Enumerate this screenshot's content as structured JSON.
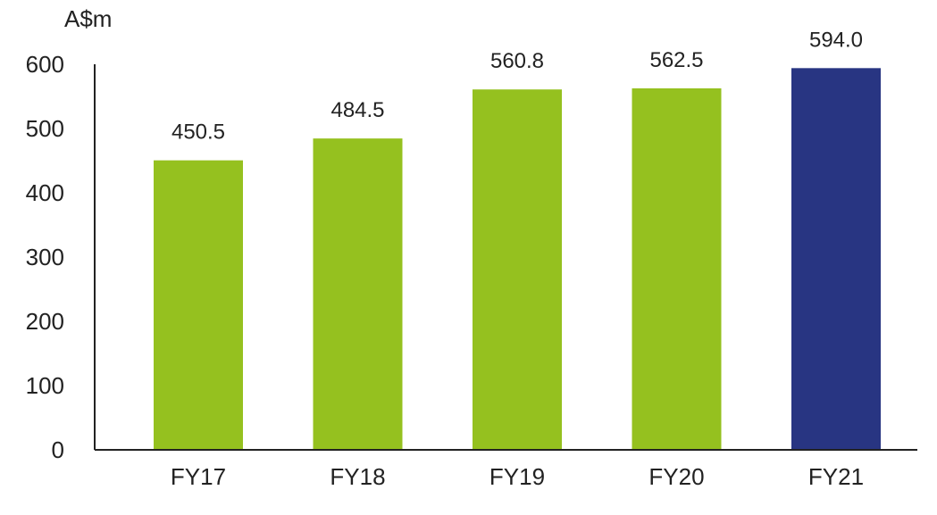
{
  "chart_data": {
    "type": "bar",
    "title": "",
    "xlabel": "",
    "ylabel": "A$m",
    "ylim": [
      0,
      600
    ],
    "yticks": [
      0,
      100,
      200,
      300,
      400,
      500,
      600
    ],
    "grid": false,
    "categories": [
      "FY17",
      "FY18",
      "FY19",
      "FY20",
      "FY21"
    ],
    "values": [
      450.5,
      484.5,
      560.8,
      562.5,
      594.0
    ],
    "data_labels": [
      "450.5",
      "484.5",
      "560.8",
      "562.5",
      "594.0"
    ],
    "colors": [
      "#95c11f",
      "#95c11f",
      "#95c11f",
      "#95c11f",
      "#283582"
    ],
    "axis_color": "#222222"
  }
}
